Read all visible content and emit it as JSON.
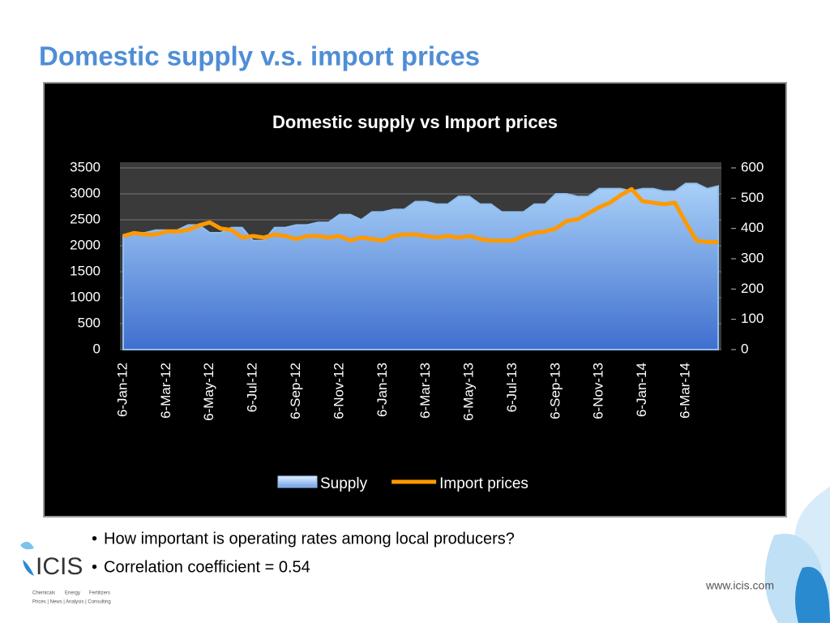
{
  "slide": {
    "title": "Domestic supply v.s. import prices",
    "bullets": [
      "How important is operating rates among local producers?",
      "Correlation coefficient = 0.54"
    ],
    "logo": "ICIS",
    "logo_sectors": [
      "Chemicals",
      "Energy",
      "Fertilizers"
    ],
    "logo_tagline": "Prices | News | Analysis | Consulting",
    "url": "www.icis.com"
  },
  "chart_data": {
    "type": "area-line",
    "title": "Domestic supply vs Import prices",
    "x": [
      "6-Jan-12",
      null,
      null,
      null,
      "6-Mar-12",
      null,
      null,
      null,
      "6-May-12",
      null,
      null,
      null,
      "6-Jul-12",
      null,
      null,
      null,
      "6-Sep-12",
      null,
      null,
      null,
      "6-Nov-12",
      null,
      null,
      null,
      "6-Jan-13",
      null,
      null,
      null,
      "6-Mar-13",
      null,
      null,
      null,
      "6-May-13",
      null,
      null,
      null,
      "6-Jul-13",
      null,
      null,
      null,
      "6-Sep-13",
      null,
      null,
      null,
      "6-Nov-13",
      null,
      null,
      null,
      "6-Jan-14",
      null,
      null,
      null,
      "6-Mar-14",
      null,
      null,
      null
    ],
    "series": [
      {
        "name": "Supply",
        "color": "#8fbff0",
        "kind": "area",
        "axis": "y",
        "values": [
          2200,
          2250,
          2250,
          2300,
          2300,
          2300,
          2400,
          2400,
          2250,
          2250,
          2350,
          2350,
          2100,
          2100,
          2350,
          2350,
          2400,
          2400,
          2450,
          2450,
          2600,
          2600,
          2500,
          2650,
          2650,
          2700,
          2700,
          2850,
          2850,
          2800,
          2800,
          2950,
          2950,
          2800,
          2800,
          2650,
          2650,
          2650,
          2800,
          2800,
          3000,
          3000,
          2950,
          2950,
          3100,
          3100,
          3100,
          3050,
          3100,
          3100,
          3050,
          3050,
          3200,
          3200,
          3100,
          3150
        ]
      },
      {
        "name": "Import prices",
        "color": "#ff9900",
        "kind": "line",
        "axis": "y2",
        "values": [
          375,
          385,
          380,
          380,
          390,
          390,
          395,
          410,
          420,
          400,
          395,
          370,
          375,
          370,
          380,
          375,
          365,
          375,
          375,
          370,
          375,
          360,
          370,
          365,
          360,
          375,
          380,
          380,
          375,
          370,
          375,
          370,
          375,
          365,
          360,
          360,
          360,
          375,
          385,
          390,
          400,
          425,
          430,
          450,
          470,
          485,
          510,
          530,
          490,
          485,
          480,
          485,
          420,
          360,
          355,
          355
        ]
      }
    ],
    "ylim": [
      0,
      3500
    ],
    "yticks": [
      0,
      500,
      1000,
      1500,
      2000,
      2500,
      3000,
      3500
    ],
    "y2lim": [
      0,
      600
    ],
    "y2ticks": [
      0,
      100,
      200,
      300,
      400,
      500,
      600
    ],
    "grid": true,
    "legend": "bottom"
  }
}
